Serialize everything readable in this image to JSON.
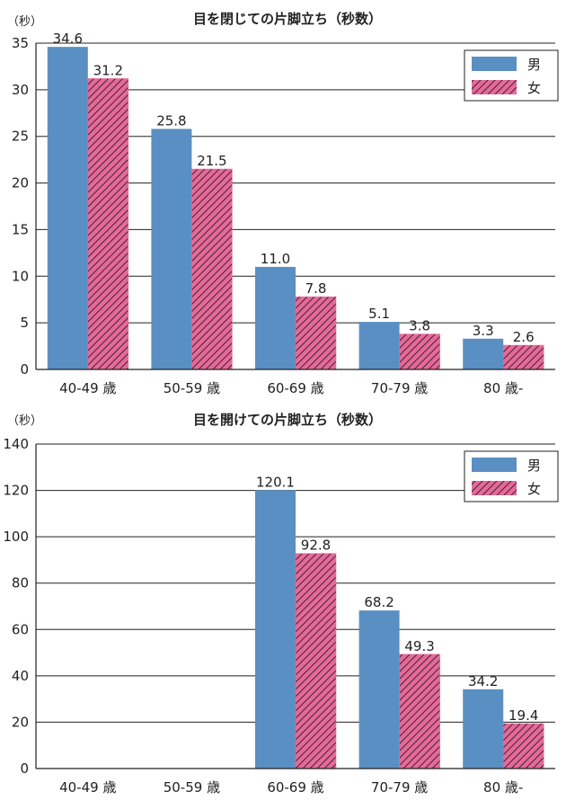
{
  "colors": {
    "male": "#5a8fc3",
    "female": "#e8689a",
    "hatch": "#3a2a33",
    "grid": "#222222"
  },
  "chart_data": [
    {
      "type": "bar",
      "title": "目を閉じての片脚立ち（秒数）",
      "unit_label": "（秒）",
      "categories": [
        "40-49 歳",
        "50-59 歳",
        "60-69 歳",
        "70-79 歳",
        "80 歳-"
      ],
      "series": [
        {
          "name": "男",
          "values": [
            34.6,
            25.8,
            11.0,
            5.1,
            3.3
          ],
          "labels": [
            "34.6",
            "25.8",
            "11.0",
            "5.1",
            "3.3"
          ]
        },
        {
          "name": "女",
          "values": [
            31.2,
            21.5,
            7.8,
            3.8,
            2.6
          ],
          "labels": [
            "31.2",
            "21.5",
            "7.8",
            "3.8",
            "2.6"
          ]
        }
      ],
      "ylim": [
        0,
        35
      ],
      "yticks": [
        0,
        5,
        10,
        15,
        20,
        25,
        30,
        35
      ],
      "grid": true,
      "legend_position": "top-right"
    },
    {
      "type": "bar",
      "title": "目を開けての片脚立ち（秒数）",
      "unit_label": "（秒）",
      "categories": [
        "40-49 歳",
        "50-59 歳",
        "60-69 歳",
        "70-79 歳",
        "80 歳-"
      ],
      "series": [
        {
          "name": "男",
          "values": [
            null,
            null,
            120.1,
            68.2,
            34.2
          ],
          "labels": [
            "",
            "",
            "120.1",
            "68.2",
            "34.2"
          ]
        },
        {
          "name": "女",
          "values": [
            null,
            null,
            92.8,
            49.3,
            19.4
          ],
          "labels": [
            "",
            "",
            "92.8",
            "49.3",
            "19.4"
          ]
        }
      ],
      "ylim": [
        0,
        140
      ],
      "yticks": [
        0,
        20,
        40,
        60,
        80,
        100,
        120,
        140
      ],
      "grid": true,
      "legend_position": "top-right"
    }
  ]
}
